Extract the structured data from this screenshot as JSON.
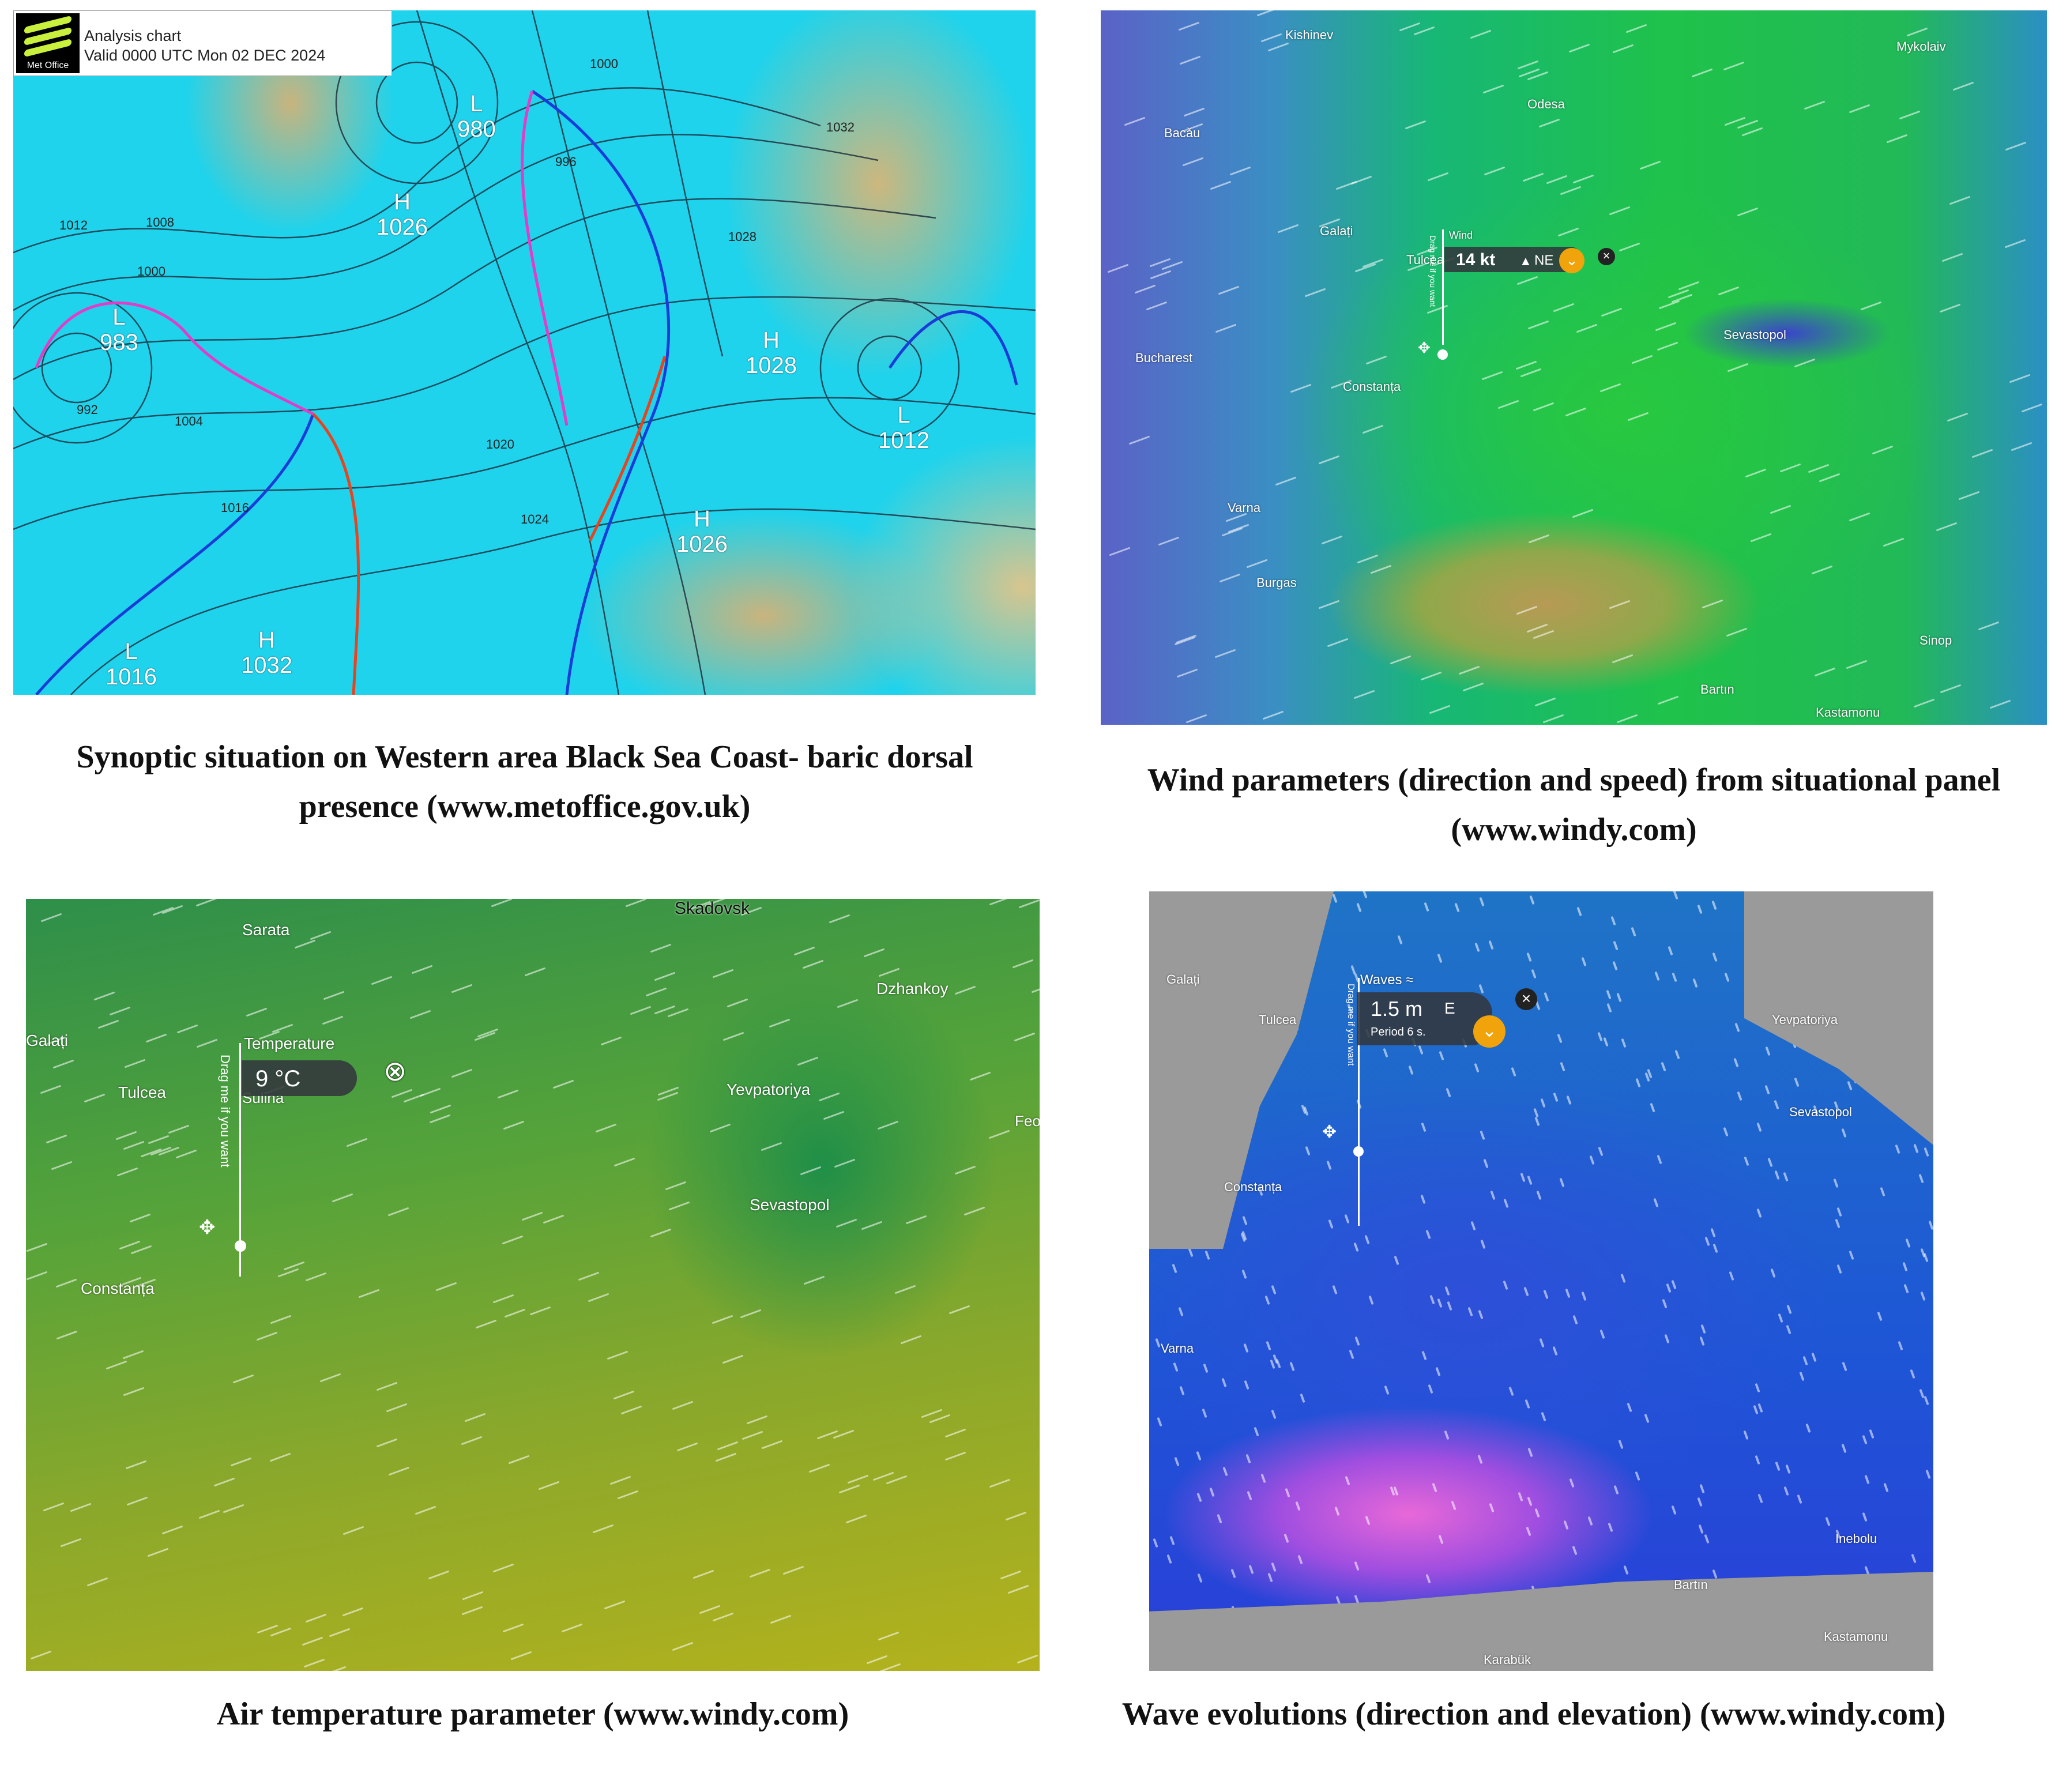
{
  "panels": {
    "synoptic": {
      "logo_text": "Met Office",
      "chart_title": "Analysis chart",
      "valid": "Valid 0000 UTC Mon 02 DEC 2024",
      "pressure_centers": [
        {
          "type": "L",
          "value": "980"
        },
        {
          "type": "H",
          "value": "1026"
        },
        {
          "type": "L",
          "value": "983"
        },
        {
          "type": "H",
          "value": "1028"
        },
        {
          "type": "L",
          "value": "1012"
        },
        {
          "type": "H",
          "value": "1026"
        },
        {
          "type": "L",
          "value": "1016"
        },
        {
          "type": "H",
          "value": "1032"
        }
      ],
      "isobar_labels": [
        "1012",
        "1008",
        "1000",
        "1016",
        "1020",
        "1024",
        "992",
        "1004",
        "1028",
        "1032",
        "996",
        "1000"
      ],
      "caption": "Synoptic situation on Western area Black Sea Coast- baric dorsal presence (www.metoffice.gov.uk)"
    },
    "wind": {
      "popup_label": "Wind",
      "value": "14 kt",
      "direction": "NE",
      "drag_hint": "Drag me if you want",
      "places": [
        "Kishinev",
        "Mykolaiv",
        "Odesa",
        "Bacău",
        "Galați",
        "Tulcea",
        "Bucharest",
        "Constanța",
        "Sevastopol",
        "Varna",
        "Burgas",
        "Sinop",
        "Bartın",
        "Kastamonu"
      ],
      "caption": "Wind parameters (direction and speed) from situational panel (www.windy.com)"
    },
    "temperature": {
      "popup_label": "Temperature",
      "value": "9 °C",
      "drag_hint": "Drag me if you want",
      "places": [
        "Sarata",
        "Skadovsk",
        "Dzhankoy",
        "Galați",
        "Tulcea",
        "Sulina",
        "Yevpatoriya",
        "Sevastopol",
        "Constanța",
        "Feo"
      ],
      "caption": "Air temperature parameter (www.windy.com)"
    },
    "waves": {
      "popup_label": "Waves ≈",
      "value": "1.5 m",
      "direction": "E",
      "period": "Period 6 s.",
      "drag_hint": "Drag me if you want",
      "places": [
        "Galați",
        "Tulcea",
        "Constanța",
        "Varna",
        "Yevpatoriya",
        "Sevastopol",
        "Inebolu",
        "Bartın",
        "Kastamonu",
        "Karabük"
      ],
      "caption": "Wave evolutions (direction and elevation) (www.windy.com)"
    }
  },
  "colors": {
    "windy_badge": "#f0a30a",
    "cold_front": "#1a3cd8",
    "warm_front": "#e8431f",
    "occluded_front": "#e23cc8"
  }
}
